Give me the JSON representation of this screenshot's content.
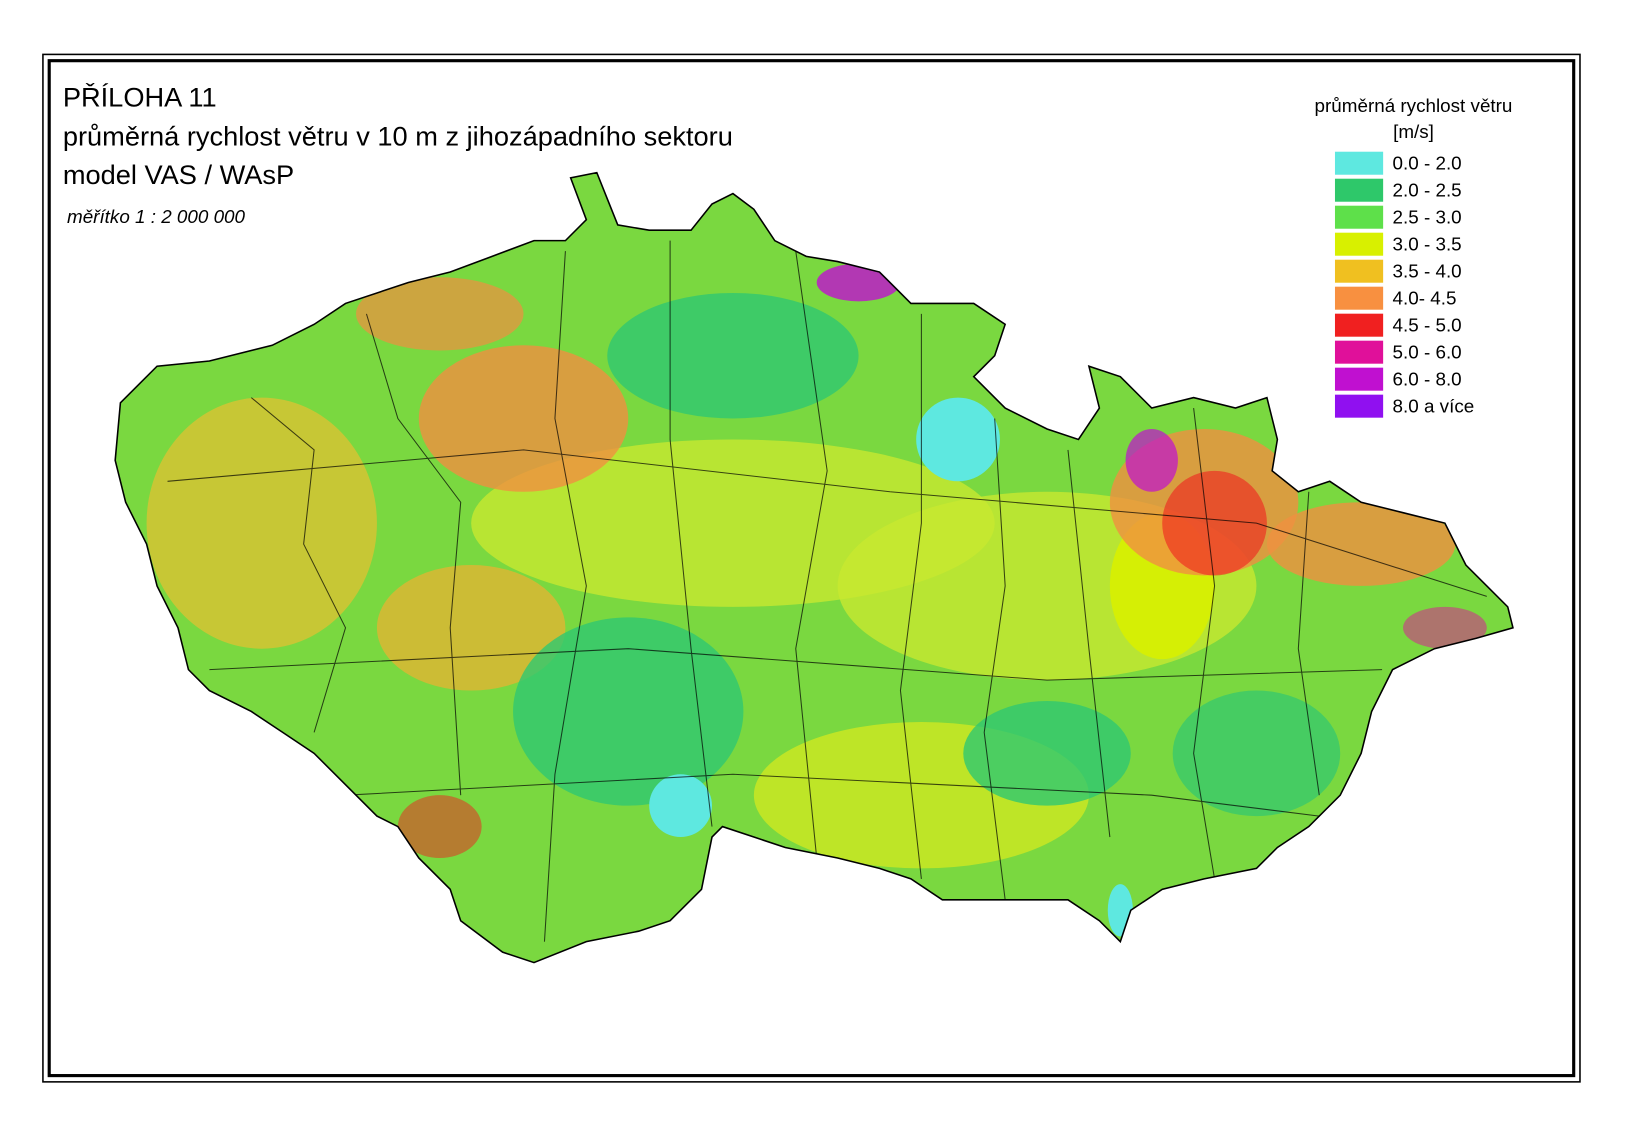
{
  "header": {
    "lines": [
      "PŘÍLOHA 11",
      "průměrná rychlost větru v 10 m z jihozápadního sektoru",
      "model VAS / WAsP"
    ],
    "scale": "měřítko 1 : 2 000 000"
  },
  "legend": {
    "title": "průměrná rychlost větru",
    "unit": "[m/s]",
    "items": [
      {
        "label": "0.0 - 2.0",
        "color": "#5ee8e0"
      },
      {
        "label": "2.0 - 2.5",
        "color": "#2ec86a"
      },
      {
        "label": "2.5 - 3.0",
        "color": "#5ee04a"
      },
      {
        "label": "3.0 - 3.5",
        "color": "#d8f000"
      },
      {
        "label": "3.5 - 4.0",
        "color": "#f0c020"
      },
      {
        "label": "4.0- 4.5",
        "color": "#f89040"
      },
      {
        "label": "4.5 - 5.0",
        "color": "#f02020"
      },
      {
        "label": "5.0 - 6.0",
        "color": "#e0109a"
      },
      {
        "label": "6.0 - 8.0",
        "color": "#c010d0"
      },
      {
        "label": "8.0 a více",
        "color": "#9010f0"
      }
    ]
  }
}
